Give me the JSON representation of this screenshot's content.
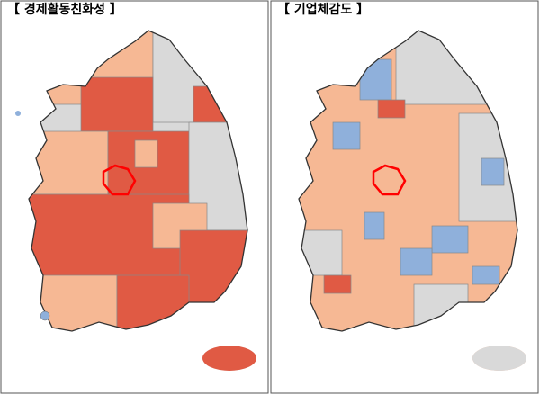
{
  "panels": [
    {
      "title": "【 경제활동친화성 】"
    },
    {
      "title": "【 기업체감도 】"
    }
  ]
}
